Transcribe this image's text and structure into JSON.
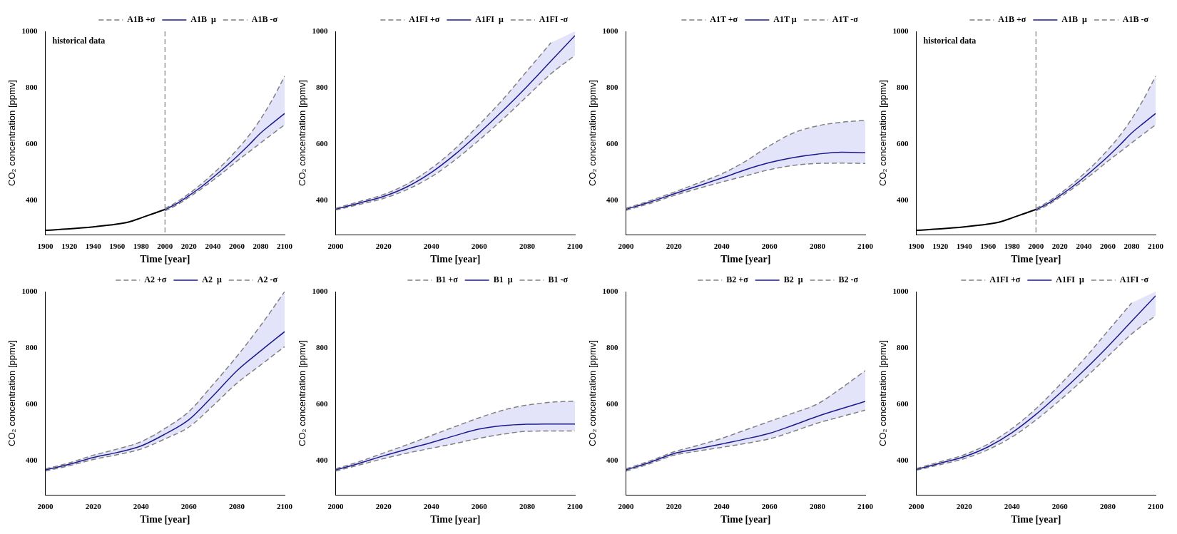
{
  "chart_data": [
    {
      "type": "line",
      "xlabel": "Time [year]",
      "ylabel": "CO₂ concentration [ppmv]",
      "xlim": [
        1900,
        2100
      ],
      "xticks": [
        1900,
        1920,
        1940,
        1960,
        1980,
        2000,
        2020,
        2040,
        2060,
        2080,
        2100
      ],
      "ylim": [
        280,
        1000
      ],
      "yticks": [
        400,
        600,
        800,
        1000
      ],
      "grid": false,
      "legend": "top right",
      "marker": "none",
      "annotations": [
        "historical data"
      ],
      "ref_lines": [
        {
          "axis": "x",
          "value": 2000,
          "color": "#808080",
          "line_style": "dashed"
        }
      ],
      "x": [
        2000,
        2010,
        2020,
        2030,
        2040,
        2050,
        2060,
        2070,
        2080,
        2090,
        2100
      ],
      "series": [
        {
          "name": "A1B +σ",
          "color": "#808080",
          "line_style": "dashed",
          "values": [
            372,
            396,
            425,
            458,
            495,
            535,
            580,
            630,
            690,
            760,
            841
          ]
        },
        {
          "name": "A1B  μ",
          "color": "#1a1a8c",
          "line_style": "solid",
          "values": [
            368,
            390,
            418,
            448,
            482,
            518,
            556,
            597,
            640,
            675,
            709
          ],
          "upper": [
            372,
            396,
            425,
            458,
            495,
            535,
            580,
            630,
            690,
            760,
            841
          ],
          "lower": [
            364,
            385,
            412,
            441,
            472,
            505,
            540,
            572,
            605,
            637,
            669
          ]
        },
        {
          "name": "A1B -σ",
          "color": "#808080",
          "line_style": "dashed",
          "values": [
            364,
            385,
            412,
            441,
            472,
            505,
            540,
            572,
            605,
            637,
            669
          ]
        },
        {
          "color": "#000000",
          "line_style": "solid",
          "x": [
            1900,
            1920,
            1940,
            1960,
            1970,
            1980,
            1990,
            2000
          ],
          "values": [
            295,
            300,
            307,
            317,
            325,
            339,
            354,
            369
          ]
        }
      ]
    },
    {
      "type": "line",
      "xlabel": "Time [year]",
      "ylabel": "CO₂ concentration [ppmv]",
      "xlim": [
        2000,
        2100
      ],
      "xticks": [
        2000,
        2020,
        2040,
        2060,
        2080,
        2100
      ],
      "ylim": [
        280,
        1000
      ],
      "yticks": [
        400,
        600,
        800,
        1000
      ],
      "grid": false,
      "legend": "top right",
      "marker": "none",
      "x": [
        2000,
        2010,
        2020,
        2030,
        2040,
        2050,
        2060,
        2070,
        2080,
        2090,
        2100
      ],
      "series": [
        {
          "name": "A1FI +σ",
          "color": "#808080",
          "line_style": "dashed",
          "values": [
            373,
            397,
            422,
            460,
            515,
            585,
            670,
            760,
            860,
            960,
            null
          ]
        },
        {
          "name": "A1FI  μ",
          "color": "#1a1a8c",
          "line_style": "solid",
          "values": [
            370,
            392,
            415,
            450,
            500,
            565,
            640,
            720,
            805,
            895,
            985
          ],
          "upper": [
            373,
            397,
            422,
            460,
            515,
            585,
            670,
            760,
            860,
            960,
            1000
          ],
          "lower": [
            367,
            387,
            408,
            440,
            485,
            545,
            615,
            690,
            770,
            850,
            915
          ]
        },
        {
          "name": "A1FI -σ",
          "color": "#808080",
          "line_style": "dashed",
          "values": [
            367,
            387,
            408,
            440,
            485,
            545,
            615,
            690,
            770,
            850,
            915
          ]
        }
      ]
    },
    {
      "type": "line",
      "xlabel": "Time [year]",
      "ylabel": "CO₂ concentration [ppmv]",
      "xlim": [
        2000,
        2100
      ],
      "xticks": [
        2000,
        2020,
        2040,
        2060,
        2080,
        2100
      ],
      "ylim": [
        280,
        1000
      ],
      "yticks": [
        400,
        600,
        800,
        1000
      ],
      "grid": false,
      "legend": "top right",
      "marker": "none",
      "x": [
        2000,
        2010,
        2020,
        2030,
        2040,
        2050,
        2060,
        2070,
        2080,
        2090,
        2100
      ],
      "series": [
        {
          "name": "A1T +σ",
          "color": "#808080",
          "line_style": "dashed",
          "values": [
            373,
            400,
            430,
            462,
            495,
            540,
            595,
            640,
            665,
            678,
            685
          ]
        },
        {
          "name": "A1T μ",
          "color": "#1a1a8c",
          "line_style": "solid",
          "values": [
            370,
            395,
            424,
            452,
            480,
            510,
            535,
            553,
            565,
            572,
            570
          ],
          "upper": [
            373,
            400,
            430,
            462,
            495,
            540,
            595,
            640,
            665,
            678,
            685
          ],
          "lower": [
            366,
            390,
            418,
            443,
            466,
            488,
            510,
            525,
            532,
            533,
            532
          ]
        },
        {
          "name": "A1T -σ",
          "color": "#808080",
          "line_style": "dashed",
          "values": [
            366,
            390,
            418,
            443,
            466,
            488,
            510,
            525,
            532,
            533,
            532
          ]
        }
      ]
    },
    {
      "type": "line",
      "xlabel": "Time [year]",
      "ylabel": "CO₂ concentration [ppmv]",
      "xlim": [
        1900,
        2100
      ],
      "xticks": [
        1900,
        1920,
        1940,
        1960,
        1980,
        2000,
        2020,
        2040,
        2060,
        2080,
        2100
      ],
      "ylim": [
        280,
        1000
      ],
      "yticks": [
        400,
        600,
        800,
        1000
      ],
      "grid": false,
      "legend": "top right",
      "marker": "none",
      "annotations": [
        "historical data"
      ],
      "ref_lines": [
        {
          "axis": "x",
          "value": 2000,
          "color": "#808080",
          "line_style": "dashed"
        }
      ],
      "x": [
        2000,
        2010,
        2020,
        2030,
        2040,
        2050,
        2060,
        2070,
        2080,
        2090,
        2100
      ],
      "series": [
        {
          "name": "A1B +σ",
          "color": "#808080",
          "line_style": "dashed",
          "values": [
            372,
            396,
            425,
            458,
            495,
            535,
            580,
            630,
            690,
            760,
            841
          ]
        },
        {
          "name": "A1B  μ",
          "color": "#1a1a8c",
          "line_style": "solid",
          "values": [
            368,
            390,
            418,
            448,
            482,
            518,
            556,
            597,
            640,
            675,
            709
          ],
          "upper": [
            372,
            396,
            425,
            458,
            495,
            535,
            580,
            630,
            690,
            760,
            841
          ],
          "lower": [
            364,
            385,
            412,
            441,
            472,
            505,
            540,
            572,
            605,
            637,
            669
          ]
        },
        {
          "name": "A1B -σ",
          "color": "#808080",
          "line_style": "dashed",
          "values": [
            364,
            385,
            412,
            441,
            472,
            505,
            540,
            572,
            605,
            637,
            669
          ]
        },
        {
          "color": "#000000",
          "line_style": "solid",
          "x": [
            1900,
            1920,
            1940,
            1960,
            1970,
            1980,
            1990,
            2000
          ],
          "values": [
            295,
            300,
            307,
            317,
            325,
            339,
            354,
            369
          ]
        }
      ]
    },
    {
      "type": "line",
      "xlabel": "Time [year]",
      "ylabel": "CO₂ concentration [ppmv]",
      "xlim": [
        2000,
        2100
      ],
      "xticks": [
        2000,
        2020,
        2040,
        2060,
        2080,
        2100
      ],
      "ylim": [
        280,
        1000
      ],
      "yticks": [
        400,
        600,
        800,
        1000
      ],
      "grid": false,
      "legend": "top right",
      "marker": "none",
      "x": [
        2000,
        2010,
        2020,
        2030,
        2040,
        2050,
        2060,
        2070,
        2080,
        2090,
        2100
      ],
      "series": [
        {
          "name": "A2 +σ",
          "color": "#808080",
          "line_style": "dashed",
          "values": [
            372,
            393,
            420,
            442,
            468,
            515,
            575,
            670,
            770,
            880,
            1000
          ]
        },
        {
          "name": "A2  μ",
          "color": "#1a1a8c",
          "line_style": "solid",
          "values": [
            368,
            388,
            412,
            430,
            453,
            495,
            546,
            630,
            719,
            790,
            858
          ],
          "upper": [
            372,
            393,
            420,
            442,
            468,
            515,
            575,
            670,
            770,
            880,
            1000
          ],
          "lower": [
            364,
            383,
            405,
            422,
            442,
            478,
            520,
            595,
            675,
            740,
            805
          ]
        },
        {
          "name": "A2 -σ",
          "color": "#808080",
          "line_style": "dashed",
          "values": [
            364,
            383,
            405,
            422,
            442,
            478,
            520,
            595,
            675,
            740,
            805
          ]
        }
      ]
    },
    {
      "type": "line",
      "xlabel": "Time [year]",
      "ylabel": "CO₂ concentration [ppmv]",
      "xlim": [
        2000,
        2100
      ],
      "xticks": [
        2000,
        2020,
        2040,
        2060,
        2080,
        2100
      ],
      "ylim": [
        280,
        1000
      ],
      "yticks": [
        400,
        600,
        800,
        1000
      ],
      "grid": false,
      "legend": "top right",
      "marker": "none",
      "x": [
        2000,
        2010,
        2020,
        2030,
        2040,
        2050,
        2060,
        2070,
        2080,
        2090,
        2100
      ],
      "series": [
        {
          "name": "B1 +σ",
          "color": "#808080",
          "line_style": "dashed",
          "values": [
            372,
            398,
            428,
            458,
            490,
            522,
            553,
            580,
            598,
            608,
            612
          ]
        },
        {
          "name": "B1  μ",
          "color": "#1a1a8c",
          "line_style": "solid",
          "values": [
            368,
            392,
            418,
            442,
            465,
            490,
            513,
            525,
            530,
            531,
            531
          ],
          "upper": [
            372,
            398,
            428,
            458,
            490,
            522,
            553,
            580,
            598,
            608,
            612
          ],
          "lower": [
            364,
            386,
            408,
            428,
            445,
            462,
            480,
            495,
            505,
            506,
            506
          ]
        },
        {
          "name": "B1 -σ",
          "color": "#808080",
          "line_style": "dashed",
          "values": [
            364,
            386,
            408,
            428,
            445,
            462,
            480,
            495,
            505,
            506,
            506
          ]
        }
      ]
    },
    {
      "type": "line",
      "xlabel": "Time [year]",
      "ylabel": "CO₂ concentration [ppmv]",
      "xlim": [
        2000,
        2100
      ],
      "xticks": [
        2000,
        2020,
        2040,
        2060,
        2080,
        2100
      ],
      "ylim": [
        280,
        1000
      ],
      "yticks": [
        400,
        600,
        800,
        1000
      ],
      "grid": false,
      "legend": "top right",
      "marker": "none",
      "x": [
        2000,
        2010,
        2020,
        2030,
        2040,
        2050,
        2060,
        2070,
        2080,
        2090,
        2100
      ],
      "series": [
        {
          "name": "B2 +σ",
          "color": "#808080",
          "line_style": "dashed",
          "values": [
            372,
            400,
            432,
            455,
            480,
            510,
            540,
            570,
            602,
            658,
            720
          ]
        },
        {
          "name": "B2  μ",
          "color": "#1a1a8c",
          "line_style": "solid",
          "values": [
            368,
            395,
            426,
            443,
            460,
            478,
            498,
            527,
            558,
            585,
            611
          ],
          "upper": [
            372,
            400,
            432,
            455,
            480,
            510,
            540,
            570,
            602,
            658,
            720
          ],
          "lower": [
            364,
            390,
            420,
            435,
            448,
            462,
            478,
            505,
            534,
            557,
            580
          ]
        },
        {
          "name": "B2 -σ",
          "color": "#808080",
          "line_style": "dashed",
          "values": [
            364,
            390,
            420,
            435,
            448,
            462,
            478,
            505,
            534,
            557,
            580
          ]
        }
      ]
    },
    {
      "type": "line",
      "xlabel": "Time [year]",
      "ylabel": "CO₂ concentration [ppmv]",
      "xlim": [
        2000,
        2100
      ],
      "xticks": [
        2000,
        2020,
        2040,
        2060,
        2080,
        2100
      ],
      "ylim": [
        280,
        1000
      ],
      "yticks": [
        400,
        600,
        800,
        1000
      ],
      "grid": false,
      "legend": "top right",
      "marker": "none",
      "x": [
        2000,
        2010,
        2020,
        2030,
        2040,
        2050,
        2060,
        2070,
        2080,
        2090,
        2100
      ],
      "series": [
        {
          "name": "A1FI +σ",
          "color": "#808080",
          "line_style": "dashed",
          "values": [
            373,
            397,
            422,
            460,
            515,
            585,
            670,
            760,
            860,
            960,
            null
          ]
        },
        {
          "name": "A1FI  μ",
          "color": "#1a1a8c",
          "line_style": "solid",
          "values": [
            370,
            392,
            415,
            450,
            500,
            565,
            640,
            720,
            805,
            895,
            985
          ],
          "upper": [
            373,
            397,
            422,
            460,
            515,
            585,
            670,
            760,
            860,
            960,
            1000
          ],
          "lower": [
            367,
            387,
            408,
            440,
            485,
            545,
            615,
            690,
            770,
            850,
            915
          ]
        },
        {
          "name": "A1FI -σ",
          "color": "#808080",
          "line_style": "dashed",
          "values": [
            367,
            387,
            408,
            440,
            485,
            545,
            615,
            690,
            770,
            850,
            915
          ]
        }
      ]
    }
  ]
}
